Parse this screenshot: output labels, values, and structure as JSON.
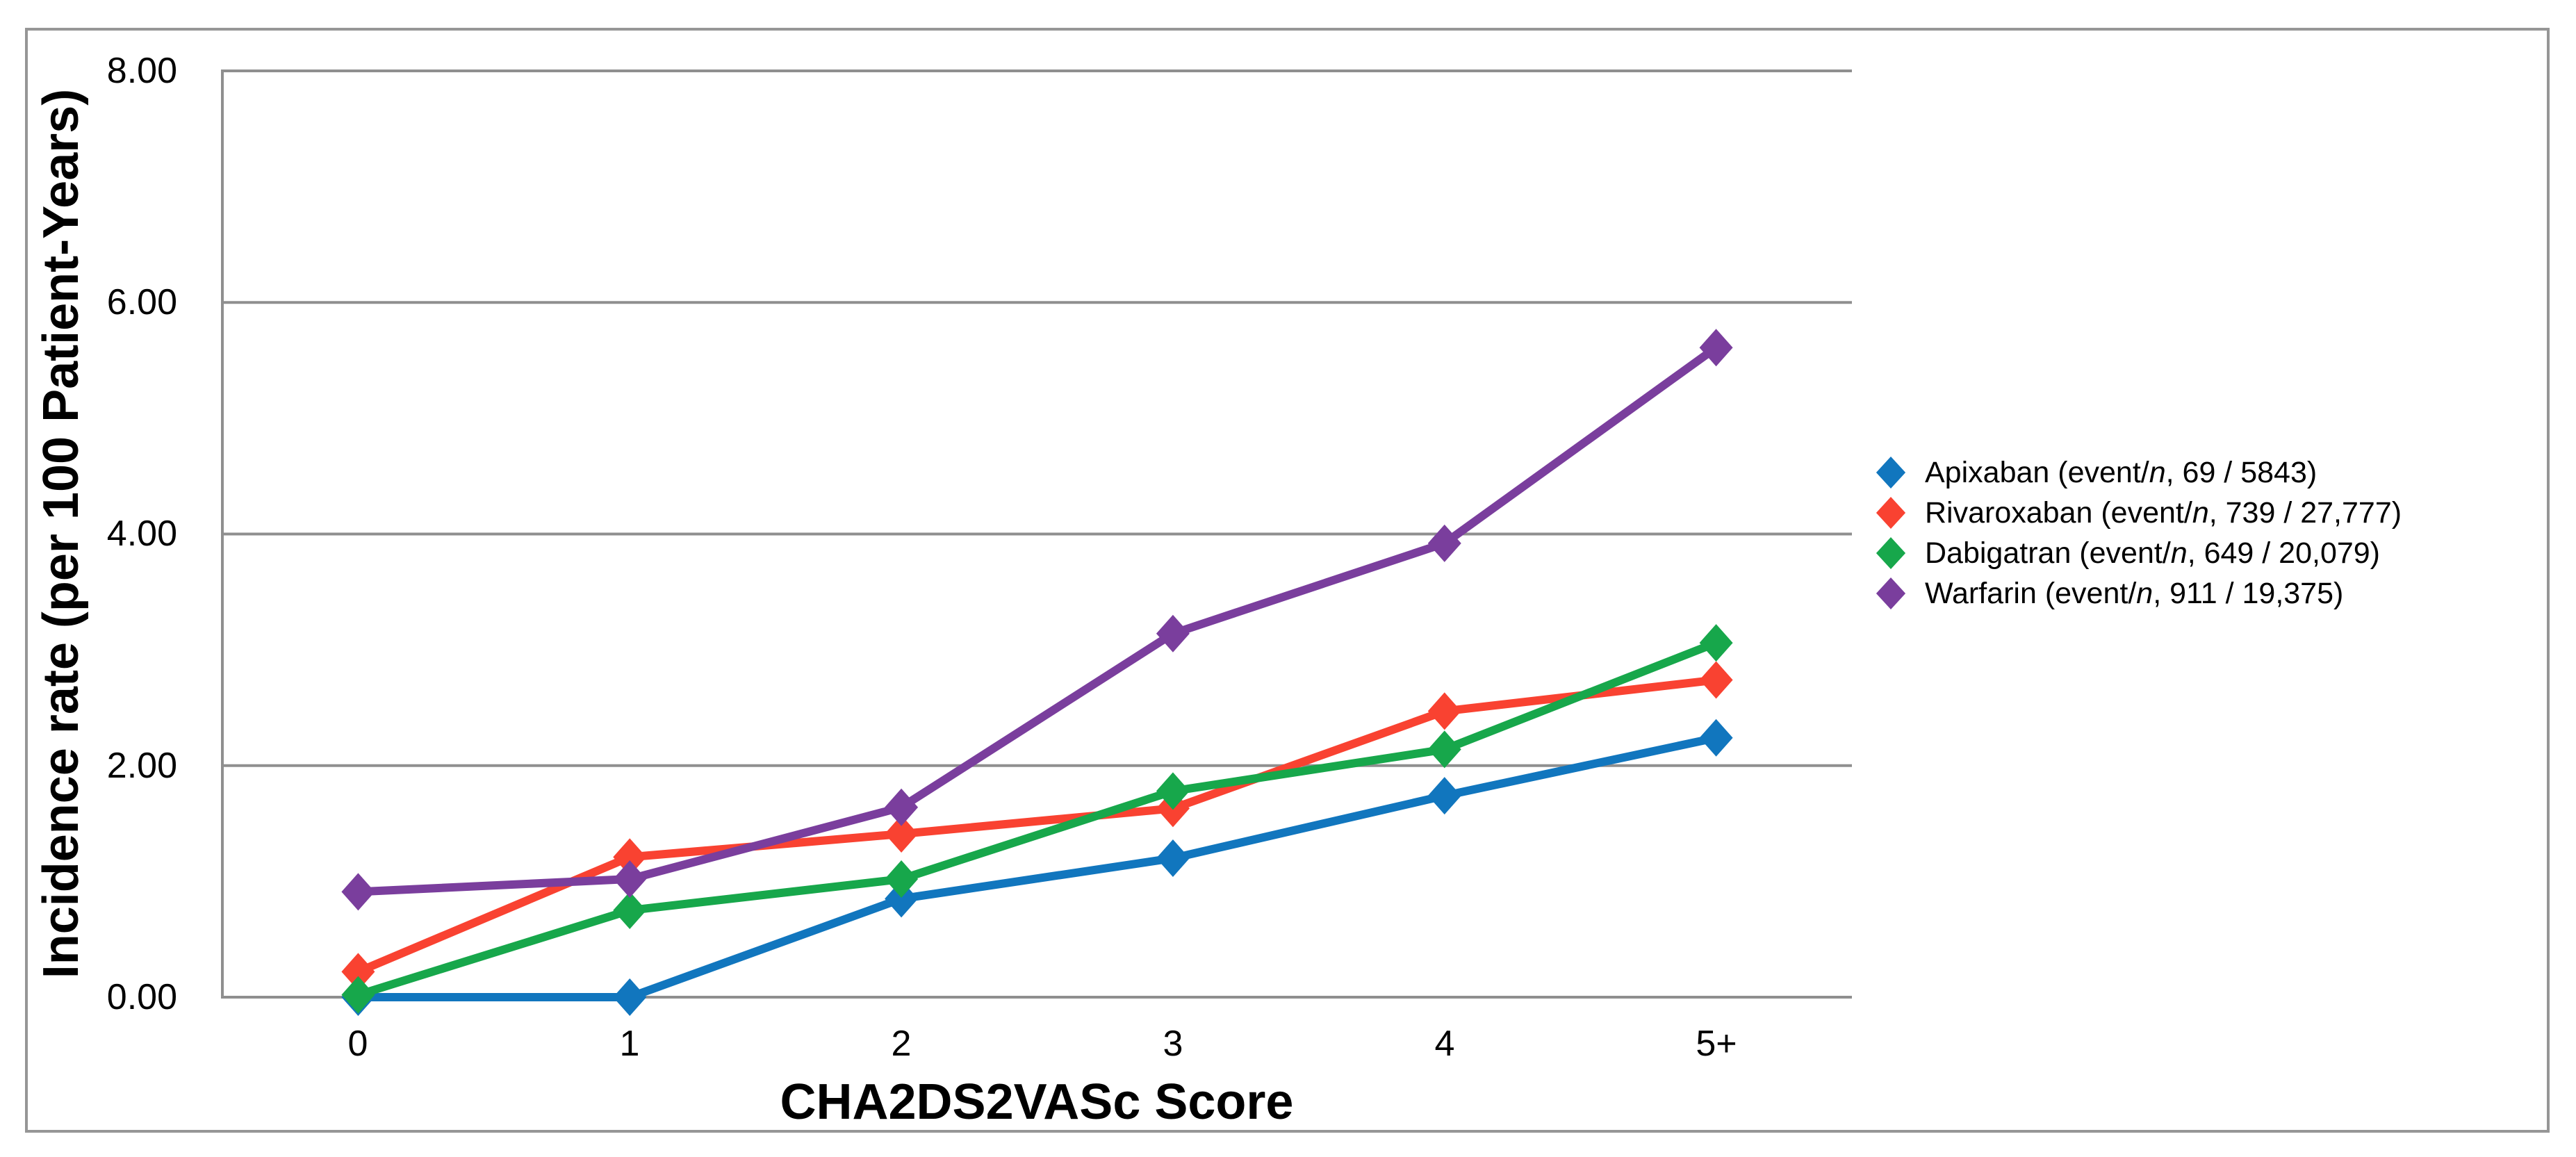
{
  "chart_data": {
    "type": "line",
    "xlabel": "CHA2DS2VASc Score",
    "ylabel": "Incidence rate (per 100 Patient-Years)",
    "categories": [
      "0",
      "1",
      "2",
      "3",
      "4",
      "5+"
    ],
    "ylim": [
      0,
      8
    ],
    "y_tick_step": 2,
    "grid": "horizontal",
    "legend_position": "right",
    "marker": "diamond",
    "series": [
      {
        "name": "Apixaban",
        "color": "#1176BE",
        "values": [
          0.0,
          0.0,
          0.85,
          1.2,
          1.74,
          2.24
        ]
      },
      {
        "name": "Rivaroxaban",
        "color": "#F94231",
        "values": [
          0.22,
          1.21,
          1.41,
          1.63,
          2.47,
          2.74
        ]
      },
      {
        "name": "Dabigatran",
        "color": "#17A74B",
        "values": [
          0.02,
          0.75,
          1.02,
          1.78,
          2.14,
          3.06
        ]
      },
      {
        "name": "Warfarin",
        "color": "#7A3E9D",
        "values": [
          0.91,
          1.02,
          1.64,
          3.14,
          3.92,
          5.61
        ]
      }
    ]
  },
  "axes": {
    "y_ticks": [
      "8.00",
      "6.00",
      "4.00",
      "2.00",
      "0.00"
    ],
    "x_ticks": [
      "0",
      "1",
      "2",
      "3",
      "4",
      "5+"
    ]
  },
  "titles": {
    "y_axis": "Incidence rate (per 100 Patient-Years)",
    "x_axis": "CHA2DS2VASc Score"
  },
  "legend": {
    "items": [
      {
        "pre": "Apixaban (event/",
        "it": "n",
        "post": ", 69 / 5843)",
        "color": "#1176BE"
      },
      {
        "pre": "Rivaroxaban (event/",
        "it": "n",
        "post": ", 739 / 27,777)",
        "color": "#F94231"
      },
      {
        "pre": "Dabigatran (event/",
        "it": "n",
        "post": ", 649 / 20,079)",
        "color": "#17A74B"
      },
      {
        "pre": "Warfarin (event/",
        "it": "n",
        "post": ", 911 / 19,375)",
        "color": "#7A3E9D"
      }
    ]
  },
  "colors": {
    "grid": "#8F8F8F",
    "border": "#969696",
    "text": "#000000"
  }
}
